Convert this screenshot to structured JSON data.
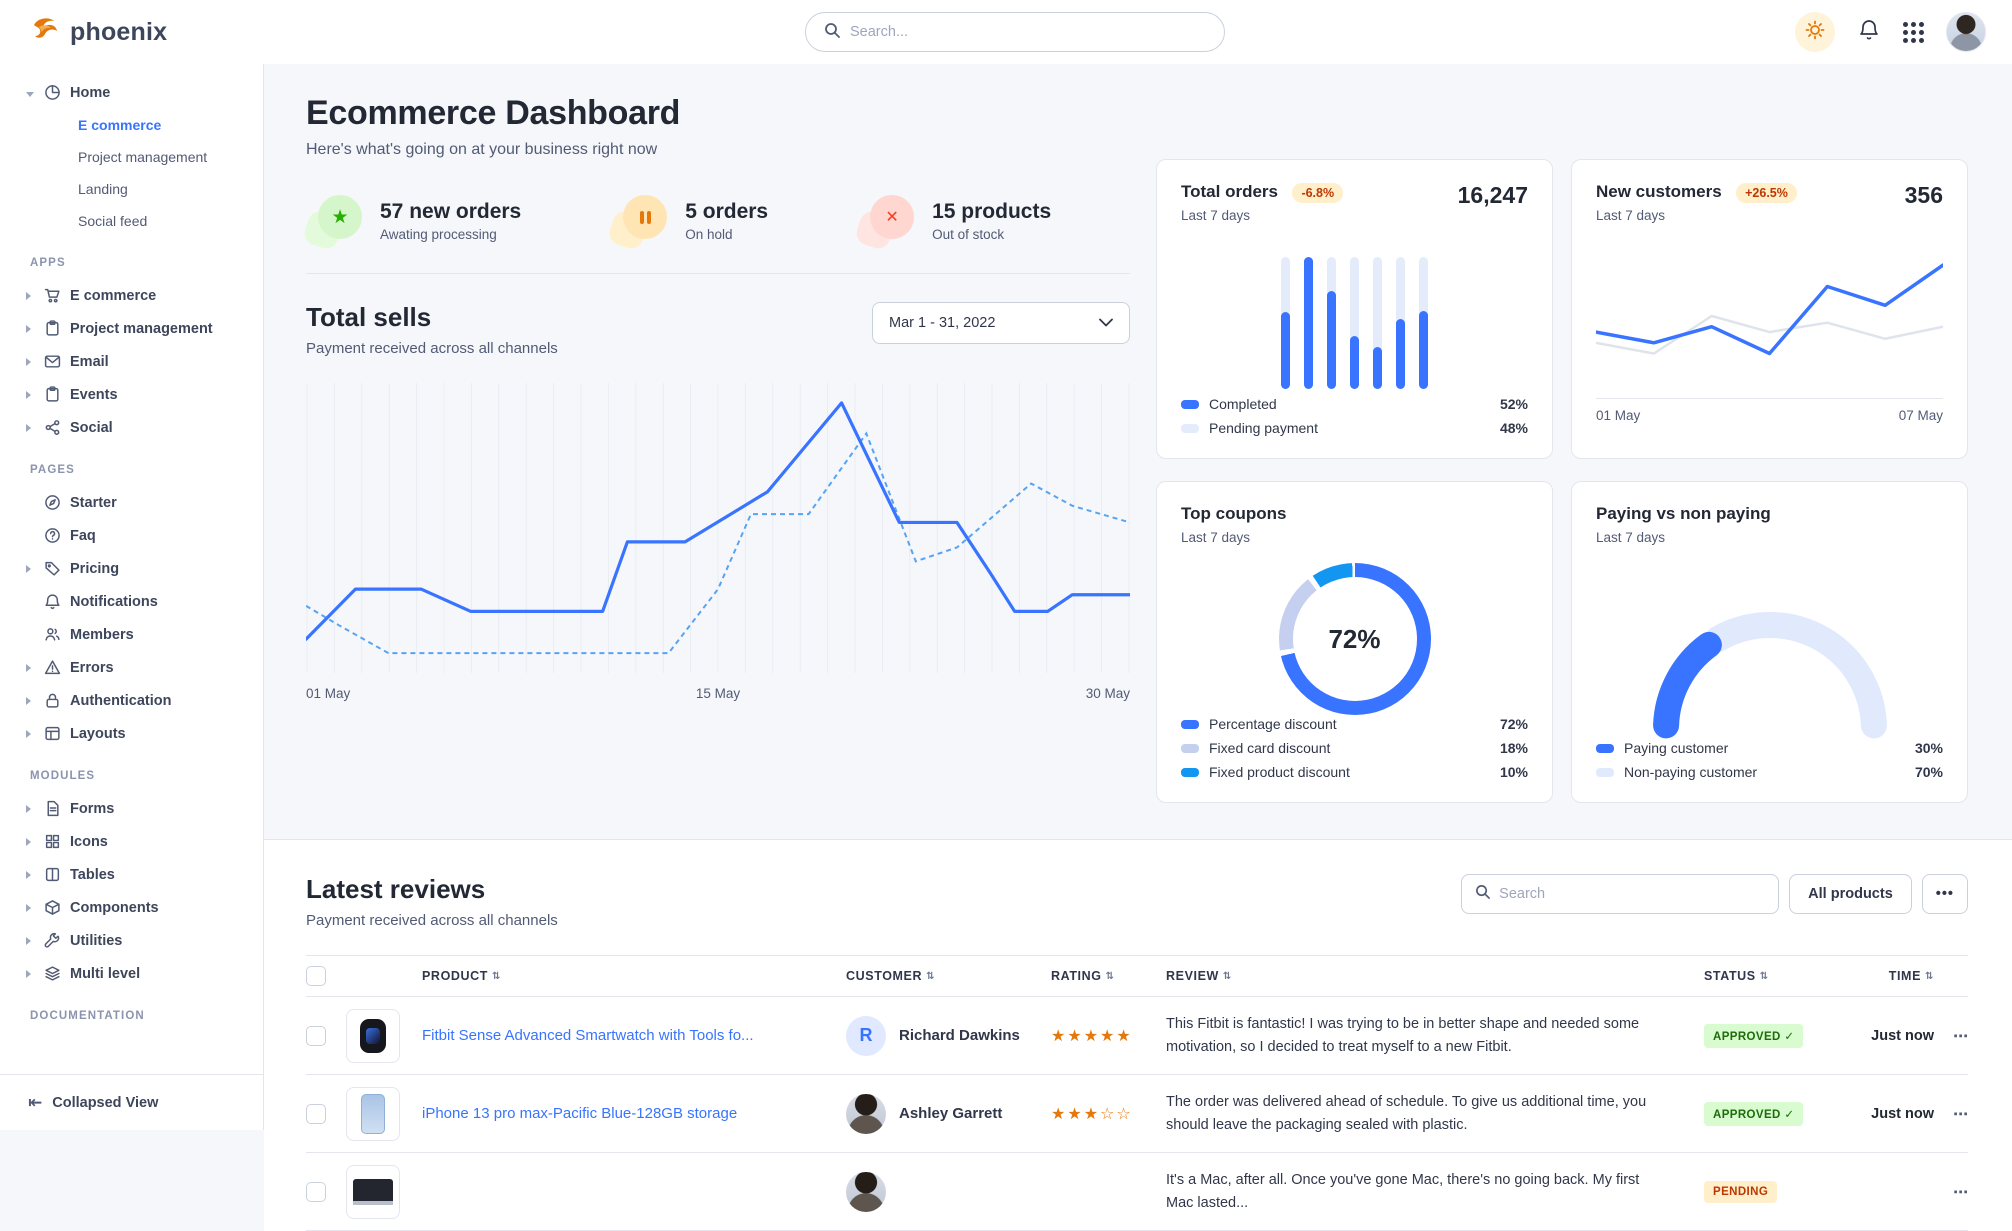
{
  "colors": {
    "primary": "#3874ff",
    "sells_dashed": "#58a3f2",
    "bar_track": "#e4ebfb",
    "gray_line": "#dfe3ec",
    "donut": [
      "#3874ff",
      "#c5d0f0",
      "#1296f2"
    ],
    "gauge": [
      "#3874ff",
      "#e1e9fd"
    ],
    "warning": "#e5780b",
    "success": "#25b003",
    "danger": "#fa3b1d"
  },
  "header": {
    "brand": "phoenix",
    "search_placeholder": "Search...",
    "icons": [
      "sun-icon",
      "bell-icon",
      "grid-icon",
      "avatar"
    ]
  },
  "sidebar": {
    "sections": [
      {
        "label": "",
        "items": [
          {
            "label": "Home",
            "icon": "pie-chart",
            "caret": "down",
            "children": [
              {
                "label": "E commerce",
                "active": true
              },
              {
                "label": "Project management",
                "active": false
              },
              {
                "label": "Landing",
                "active": false
              },
              {
                "label": "Social feed",
                "active": false
              }
            ]
          }
        ]
      },
      {
        "label": "APPS",
        "items": [
          {
            "label": "E commerce",
            "icon": "cart",
            "caret": "right"
          },
          {
            "label": "Project management",
            "icon": "clipboard",
            "caret": "right"
          },
          {
            "label": "Email",
            "icon": "mail",
            "caret": "right"
          },
          {
            "label": "Events",
            "icon": "calendar",
            "caret": "right"
          },
          {
            "label": "Social",
            "icon": "share",
            "caret": "right"
          }
        ]
      },
      {
        "label": "PAGES",
        "items": [
          {
            "label": "Starter",
            "icon": "compass",
            "caret": ""
          },
          {
            "label": "Faq",
            "icon": "question",
            "caret": ""
          },
          {
            "label": "Pricing",
            "icon": "tag",
            "caret": "right"
          },
          {
            "label": "Notifications",
            "icon": "bell",
            "caret": ""
          },
          {
            "label": "Members",
            "icon": "users",
            "caret": ""
          },
          {
            "label": "Errors",
            "icon": "warning",
            "caret": "right"
          },
          {
            "label": "Authentication",
            "icon": "lock",
            "caret": "right"
          },
          {
            "label": "Layouts",
            "icon": "layout",
            "caret": "right"
          }
        ]
      },
      {
        "label": "MODULES",
        "items": [
          {
            "label": "Forms",
            "icon": "file",
            "caret": "right"
          },
          {
            "label": "Icons",
            "icon": "grid4",
            "caret": "right"
          },
          {
            "label": "Tables",
            "icon": "columns",
            "caret": "right"
          },
          {
            "label": "Components",
            "icon": "box",
            "caret": "right"
          },
          {
            "label": "Utilities",
            "icon": "wrench",
            "caret": "right"
          },
          {
            "label": "Multi level",
            "icon": "layers",
            "caret": "right"
          }
        ]
      },
      {
        "label": "DOCUMENTATION",
        "items": []
      }
    ],
    "footer_label": "Collapsed View"
  },
  "page": {
    "title": "Ecommerce Dashboard",
    "subtitle": "Here's what's going on at your business right now"
  },
  "stats": [
    {
      "value": "57 new orders",
      "sub": "Awating processing",
      "type": "success",
      "icon": "star-icon"
    },
    {
      "value": "5 orders",
      "sub": "On hold",
      "type": "warning",
      "icon": "pause-icon"
    },
    {
      "value": "15 products",
      "sub": "Out of stock",
      "type": "danger",
      "icon": "x-icon"
    }
  ],
  "total_sells": {
    "title": "Total sells",
    "subtitle": "Payment received across all channels",
    "range": "Mar 1 - 31, 2022",
    "chart_data": {
      "type": "line",
      "x_ticks": [
        "01 May",
        "15 May",
        "30 May"
      ],
      "gridlines": 31,
      "series": [
        {
          "name": "solid",
          "points": [
            [
              0,
              10
            ],
            [
              6,
              28
            ],
            [
              14,
              28
            ],
            [
              20,
              20
            ],
            [
              36,
              20
            ],
            [
              39,
              45
            ],
            [
              46,
              45
            ],
            [
              56,
              63
            ],
            [
              65,
              95
            ],
            [
              72,
              52
            ],
            [
              79,
              52
            ],
            [
              83,
              34
            ],
            [
              86,
              20
            ],
            [
              90,
              20
            ],
            [
              93,
              26
            ],
            [
              100,
              26
            ]
          ]
        },
        {
          "name": "dashed",
          "points": [
            [
              0,
              22
            ],
            [
              4,
              15
            ],
            [
              10,
              5
            ],
            [
              44,
              5
            ],
            [
              50,
              28
            ],
            [
              54,
              55
            ],
            [
              61,
              55
            ],
            [
              68,
              84
            ],
            [
              74,
              38
            ],
            [
              79,
              43
            ],
            [
              88,
              66
            ],
            [
              93,
              58
            ],
            [
              100,
              52
            ]
          ]
        }
      ]
    }
  },
  "cards": {
    "total_orders": {
      "title": "Total orders",
      "badge": "-6.8%",
      "period": "Last 7 days",
      "value": "16,247",
      "chart_data": {
        "type": "bar",
        "completed_fraction": [
          0.58,
          1.0,
          0.74,
          0.4,
          0.32,
          0.53,
          0.59
        ]
      },
      "legend": [
        {
          "label": "Completed",
          "value": "52%",
          "color": "#3874ff"
        },
        {
          "label": "Pending payment",
          "value": "48%",
          "color": "#e4ebfb"
        }
      ]
    },
    "new_customers": {
      "title": "New customers",
      "badge": "+26.5%",
      "period": "Last 7 days",
      "value": "356",
      "chart_data": {
        "type": "line",
        "x_ticks": [
          "01 May",
          "07 May"
        ],
        "series": [
          {
            "name": "current",
            "values": [
              38,
              30,
              42,
              22,
              72,
              58,
              88
            ],
            "color": "#3874ff"
          },
          {
            "name": "previous",
            "values": [
              30,
              22,
              50,
              38,
              45,
              33,
              42
            ],
            "color": "#dfe3ec"
          }
        ]
      }
    },
    "top_coupons": {
      "title": "Top coupons",
      "period": "Last 7 days",
      "center_value": "72%",
      "chart_data": {
        "type": "pie",
        "slices": [
          72,
          18,
          10
        ]
      },
      "legend": [
        {
          "label": "Percentage discount",
          "value": "72%",
          "color": "#3874ff"
        },
        {
          "label": "Fixed card discount",
          "value": "18%",
          "color": "#c5d0f0"
        },
        {
          "label": "Fixed product discount",
          "value": "10%",
          "color": "#1296f2"
        }
      ]
    },
    "paying": {
      "title": "Paying vs non paying",
      "period": "Last 7 days",
      "chart_data": {
        "type": "gauge",
        "paying_pct": 30,
        "nonpaying_pct": 70
      },
      "legend": [
        {
          "label": "Paying customer",
          "value": "30%",
          "color": "#3874ff"
        },
        {
          "label": "Non-paying customer",
          "value": "70%",
          "color": "#e1e9fd"
        }
      ]
    }
  },
  "reviews": {
    "title": "Latest reviews",
    "subtitle": "Payment received across all channels",
    "search_placeholder": "Search",
    "filter_label": "All products",
    "more_label": "•••",
    "columns": [
      "PRODUCT",
      "CUSTOMER",
      "RATING",
      "REVIEW",
      "STATUS",
      "TIME"
    ],
    "rows": [
      {
        "thumb": "watch",
        "product": "Fitbit Sense Advanced Smartwatch with Tools fo...",
        "customer": "Richard Dawkins",
        "avatar": "initial",
        "avatar_letter": "R",
        "rating": 5,
        "review": "This Fitbit is fantastic! I was trying to be in better shape and needed some motivation, so I decided to treat myself to a new Fitbit.",
        "status": "APPROVED",
        "status_type": "success",
        "time": "Just now"
      },
      {
        "thumb": "iphone",
        "product": "iPhone 13 pro max-Pacific Blue-128GB storage",
        "customer": "Ashley Garrett",
        "avatar": "photo",
        "avatar_letter": "",
        "rating": 3,
        "review": "The order was delivered ahead of schedule. To give us additional time, you should leave the packaging sealed with plastic.",
        "status": "APPROVED",
        "status_type": "success",
        "time": "Just now"
      },
      {
        "thumb": "macbook",
        "product": "",
        "customer": "",
        "avatar": "photo",
        "avatar_letter": "",
        "rating": 0,
        "review": "It's a Mac, after all. Once you've gone Mac, there's no going back. My first Mac lasted...",
        "status": "PENDING",
        "status_type": "warning",
        "time": ""
      }
    ]
  }
}
